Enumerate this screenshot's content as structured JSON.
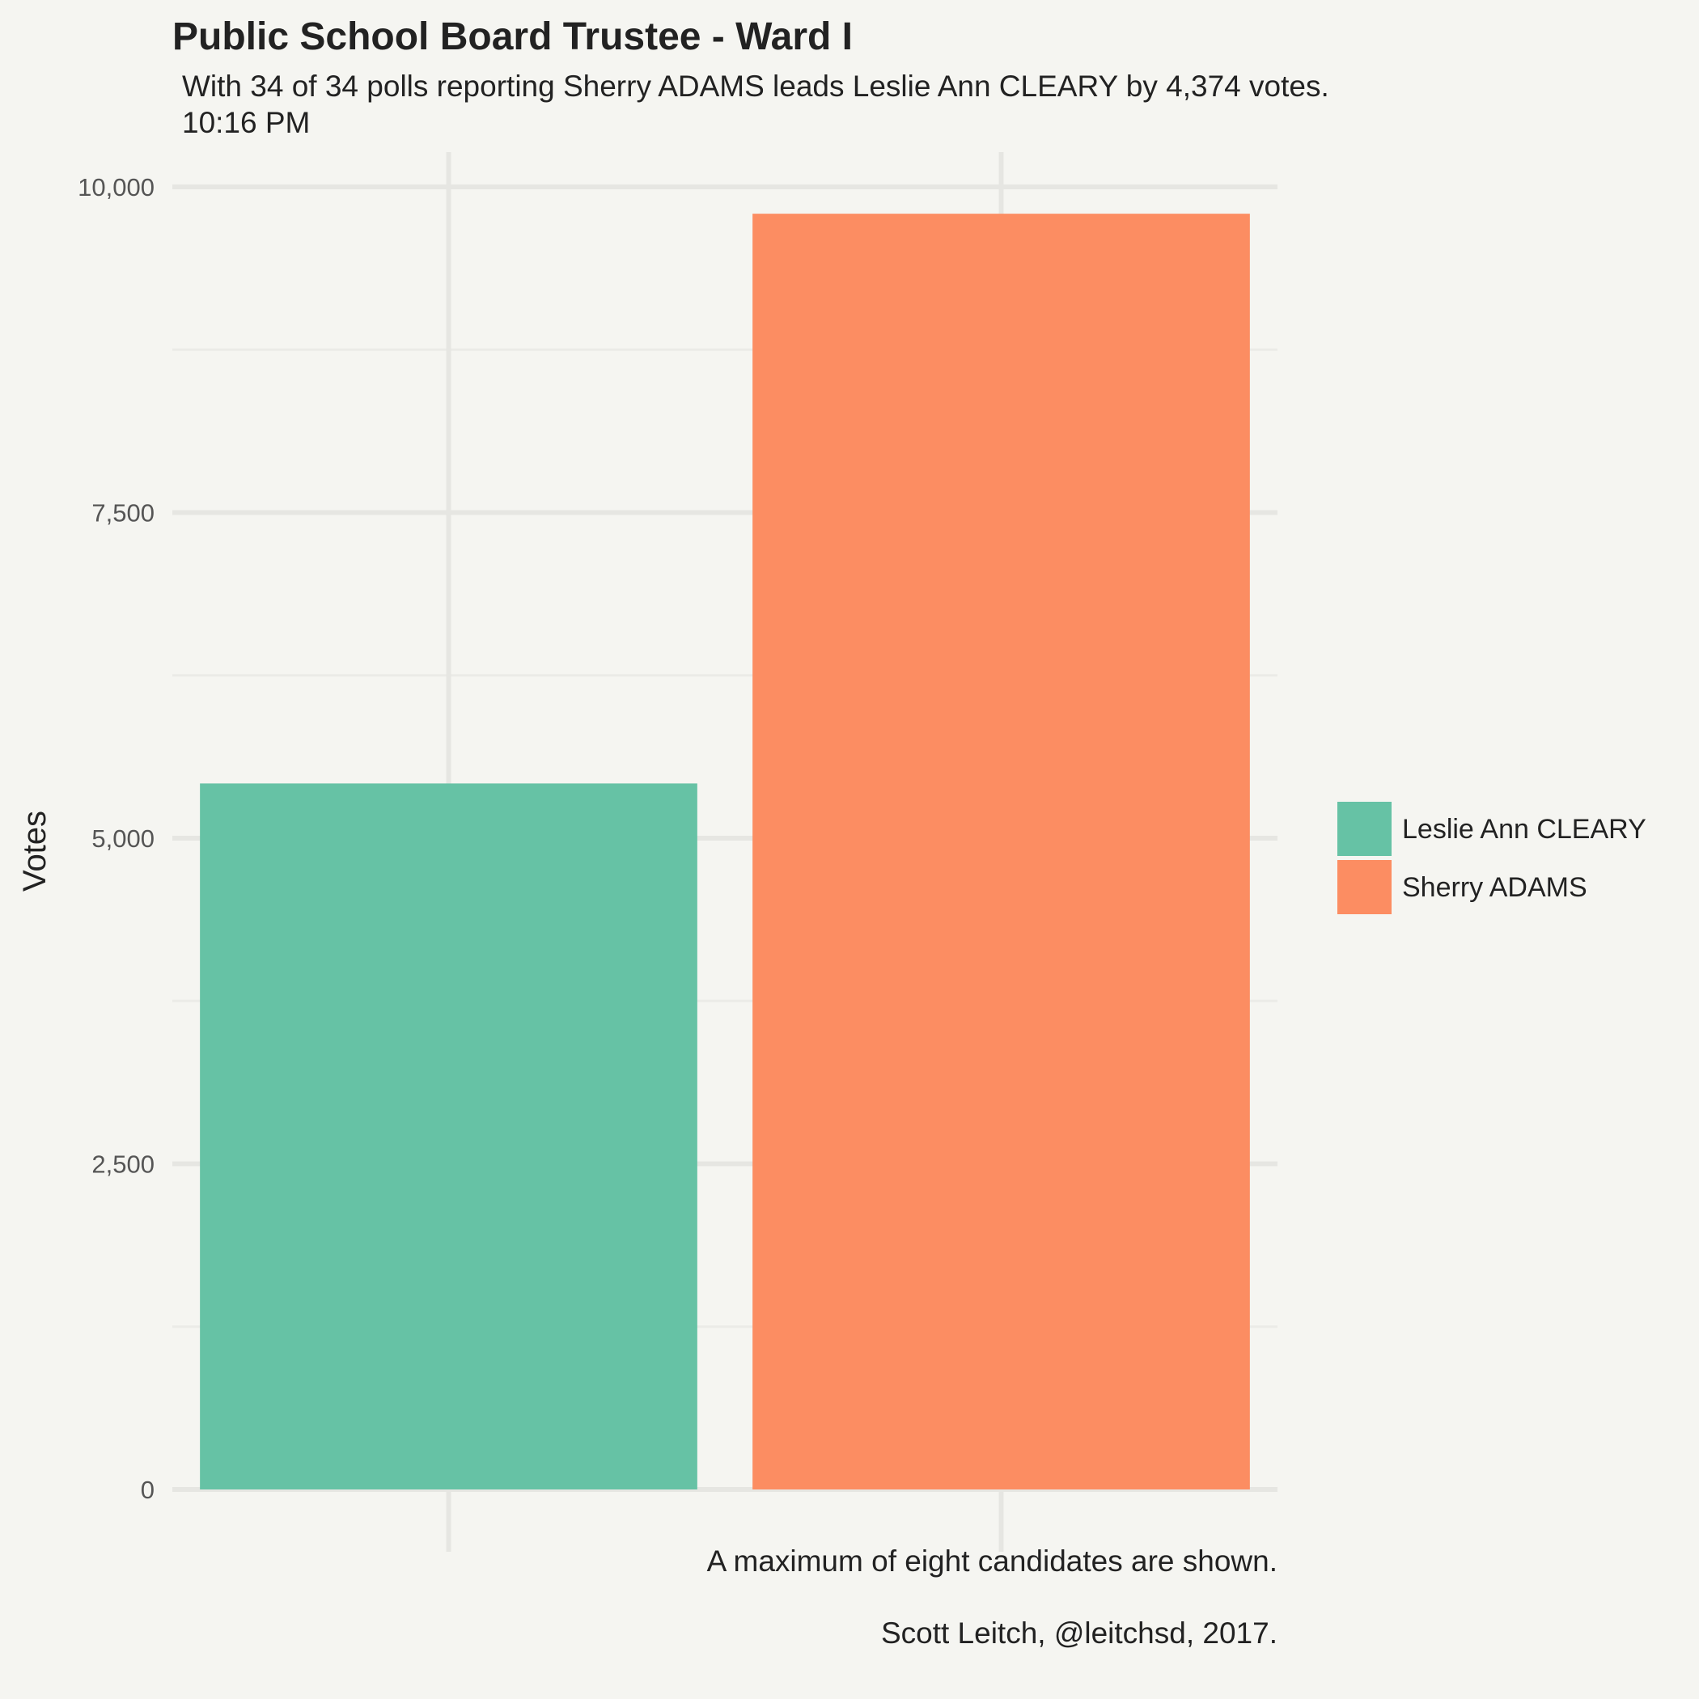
{
  "chart_data": {
    "type": "bar",
    "title": "Public School Board Trustee  - Ward I",
    "subtitle": [
      "With 34 of 34 polls reporting Sherry ADAMS leads Leslie Ann CLEARY by 4,374 votes.",
      "10:16 PM"
    ],
    "xlabel": "",
    "ylabel": "Votes",
    "ylim": [
      0,
      10000
    ],
    "yticks": [
      0,
      2500,
      5000,
      7500,
      10000
    ],
    "ytick_labels": [
      "0",
      "2,500",
      "5,000",
      "7,500",
      "10,000"
    ],
    "minor_gridlines": true,
    "categories": [
      "Leslie Ann CLEARY",
      "Sherry ADAMS"
    ],
    "values": [
      5420,
      9794
    ],
    "colors": [
      "#66c2a5",
      "#fc8d62"
    ],
    "legend": {
      "position": "right",
      "entries": [
        "Leslie Ann CLEARY",
        "Sherry ADAMS"
      ]
    },
    "caption": [
      "A maximum of eight candidates are shown.",
      "Scott Leitch, @leitchsd, 2017."
    ]
  }
}
